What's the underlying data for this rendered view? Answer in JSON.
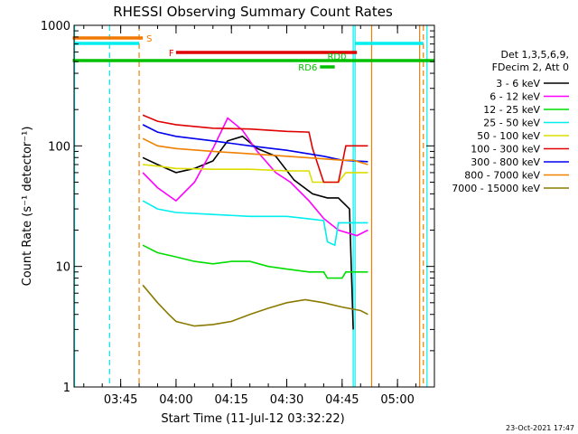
{
  "chart_data": {
    "type": "line",
    "title": "RHESSI Observing Summary Count Rates",
    "xlabel": "Start Time (11-Jul-12 03:32:22)",
    "ylabel": "Count Rate (s⁻¹ detector⁻¹)",
    "ylim": [
      1,
      1000
    ],
    "yscale": "log",
    "ytick_labels": [
      "1",
      "10",
      "100",
      "1000"
    ],
    "xlim": [
      "03:32:22",
      "05:10"
    ],
    "xtick_labels": [
      "03:45",
      "04:00",
      "04:15",
      "04:30",
      "04:45",
      "05:00"
    ],
    "legend_header": [
      "Det 1,3,5,6,9,",
      "FDecim 2, Att 0"
    ],
    "legend_position": "right",
    "flags": [
      {
        "label": "S",
        "color": "#f07800",
        "start": "03:32",
        "end": "03:51"
      },
      {
        "label": "F",
        "color": "#e00000",
        "start": "04:00",
        "end": "04:49"
      },
      {
        "label": "RD0",
        "color": "#00c000",
        "start": "03:32",
        "end": "05:10"
      },
      {
        "label": "RD6",
        "color": "#00c000",
        "start": "04:39",
        "end": "04:43"
      }
    ],
    "footer_date": "23-Oct-2021 17:47",
    "series": [
      {
        "name": "3 - 6 keV",
        "color": "#000000",
        "x": [
          "03:51",
          "03:55",
          "04:00",
          "04:05",
          "04:10",
          "04:14",
          "04:18",
          "04:22",
          "04:27",
          "04:32",
          "04:37",
          "04:41",
          "04:44",
          "04:47",
          "04:48"
        ],
        "y": [
          80,
          70,
          60,
          65,
          75,
          110,
          120,
          95,
          82,
          52,
          40,
          37,
          37,
          30,
          3
        ]
      },
      {
        "name": "6 - 12 keV",
        "color": "#ff00ff",
        "x": [
          "03:51",
          "03:55",
          "04:00",
          "04:05",
          "04:10",
          "04:14",
          "04:18",
          "04:22",
          "04:27",
          "04:31",
          "04:36",
          "04:40",
          "04:44",
          "04:49",
          "04:52"
        ],
        "y": [
          60,
          45,
          35,
          50,
          95,
          170,
          135,
          90,
          60,
          50,
          35,
          25,
          20,
          18,
          20
        ]
      },
      {
        "name": "12 - 25 keV",
        "color": "#00dd00",
        "x": [
          "03:51",
          "03:55",
          "04:00",
          "04:05",
          "04:10",
          "04:15",
          "04:20",
          "04:25",
          "04:30",
          "04:36",
          "04:40",
          "04:41",
          "04:45",
          "04:46",
          "04:50",
          "04:52"
        ],
        "y": [
          15,
          13,
          12,
          11,
          10.5,
          11,
          11,
          10,
          9.5,
          9,
          9,
          8,
          8,
          9,
          9,
          9
        ]
      },
      {
        "name": "25 - 50 keV",
        "color": "#00eeee",
        "x": [
          "03:51",
          "03:55",
          "04:00",
          "04:10",
          "04:20",
          "04:30",
          "04:35",
          "04:40",
          "04:41",
          "04:43",
          "04:44",
          "04:48",
          "04:52"
        ],
        "y": [
          35,
          30,
          28,
          27,
          26,
          26,
          25,
          24,
          16,
          15,
          23,
          23,
          23
        ]
      },
      {
        "name": "50 - 100 keV",
        "color": "#dddd00",
        "x": [
          "03:51",
          "03:55",
          "04:00",
          "04:10",
          "04:20",
          "04:30",
          "04:36",
          "04:37",
          "04:41",
          "04:44",
          "04:46",
          "04:52"
        ],
        "y": [
          70,
          68,
          65,
          64,
          64,
          62,
          62,
          50,
          50,
          50,
          60,
          60
        ]
      },
      {
        "name": "100 - 300 keV",
        "color": "#e00000",
        "x": [
          "03:51",
          "03:55",
          "04:00",
          "04:10",
          "04:20",
          "04:30",
          "04:36",
          "04:37",
          "04:40",
          "04:44",
          "04:46",
          "04:52"
        ],
        "y": [
          180,
          160,
          150,
          140,
          138,
          132,
          130,
          95,
          50,
          50,
          100,
          100
        ]
      },
      {
        "name": "300 - 800 keV",
        "color": "#0000ee",
        "x": [
          "03:51",
          "03:55",
          "04:00",
          "04:10",
          "04:20",
          "04:30",
          "04:40",
          "04:45",
          "04:52"
        ],
        "y": [
          150,
          130,
          120,
          110,
          100,
          92,
          82,
          76,
          74
        ]
      },
      {
        "name": "800 - 7000 keV",
        "color": "#f08000",
        "x": [
          "03:51",
          "03:55",
          "04:00",
          "04:10",
          "04:20",
          "04:30",
          "04:40",
          "04:45",
          "04:48",
          "04:52"
        ],
        "y": [
          115,
          100,
          95,
          90,
          86,
          82,
          78,
          76,
          76,
          70
        ]
      },
      {
        "name": "7000 - 15000 keV",
        "color": "#8b7a00",
        "x": [
          "03:51",
          "03:55",
          "03:58",
          "04:00",
          "04:05",
          "04:10",
          "04:15",
          "04:20",
          "04:25",
          "04:30",
          "04:35",
          "04:40",
          "04:45",
          "04:50",
          "04:52"
        ],
        "y": [
          7,
          5,
          4,
          3.5,
          3.2,
          3.3,
          3.5,
          4,
          4.5,
          5,
          5.3,
          5,
          4.6,
          4.3,
          4
        ]
      }
    ]
  }
}
